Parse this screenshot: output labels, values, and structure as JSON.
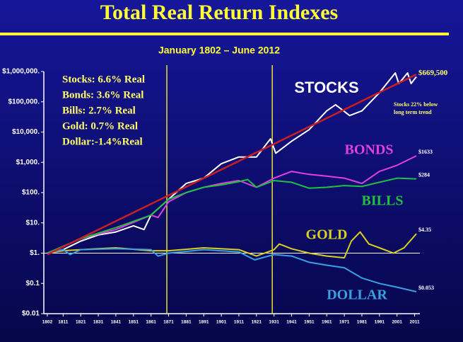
{
  "chart_data": {
    "type": "line",
    "title": "Total Real Return Indexes",
    "subtitle": "January 1802 – June 2012",
    "log_scale": true,
    "xlim": [
      1800,
      2014
    ],
    "xticks": [
      1802,
      1811,
      1821,
      1831,
      1841,
      1851,
      1861,
      1871,
      1881,
      1891,
      1901,
      1911,
      1921,
      1931,
      1941,
      1951,
      1961,
      1971,
      1981,
      1991,
      2001,
      2011
    ],
    "ylim": [
      0.01,
      1000000
    ],
    "yticks": [
      {
        "value": 1000000,
        "label": "$1,000,000."
      },
      {
        "value": 100000,
        "label": "$100,000."
      },
      {
        "value": 10000,
        "label": "$10,000."
      },
      {
        "value": 1000,
        "label": "$1,000."
      },
      {
        "value": 100,
        "label": "$100."
      },
      {
        "value": 10,
        "label": "$10."
      },
      {
        "value": 1,
        "label": "$1."
      },
      {
        "value": 0.1,
        "label": "$0.1"
      },
      {
        "value": 0.01,
        "label": "$0.01"
      }
    ],
    "vertical_lines": [
      1870,
      1930
    ],
    "vertical_line_color": "#e8e030",
    "annotations": [
      "Stocks: 6.6% Real",
      "Bonds: 3.6% Real",
      "Bills:   2.7% Real",
      "Gold:  0.7% Real",
      "Dollar:-1.4%Real"
    ],
    "note": "Stocks 22% below long term trend",
    "trend": {
      "color": "#c82020",
      "x": [
        1802,
        2012
      ],
      "values": [
        0.9,
        800000
      ]
    },
    "series": [
      {
        "name": "STOCKS",
        "color": "#ffffff",
        "x": [
          1802,
          1811,
          1821,
          1831,
          1841,
          1851,
          1857,
          1861,
          1871,
          1881,
          1891,
          1901,
          1911,
          1921,
          1929,
          1932,
          1941,
          1951,
          1961,
          1966,
          1974,
          1981,
          1991,
          2000,
          2002,
          2007,
          2009,
          2012
        ],
        "values": [
          1,
          1.3,
          2.5,
          4,
          5,
          8,
          6,
          18,
          60,
          200,
          300,
          900,
          1500,
          1500,
          6000,
          2000,
          5000,
          12000,
          50000,
          80000,
          35000,
          50000,
          200000,
          900000,
          400000,
          900000,
          400000,
          669500
        ],
        "value_labels": [
          null,
          null,
          null,
          null,
          null,
          null,
          null,
          null,
          null,
          null,
          null,
          null,
          null,
          null,
          null,
          null,
          null,
          null,
          null,
          null,
          null,
          null,
          null,
          null,
          null,
          null,
          null,
          "$669,500"
        ]
      },
      {
        "name": "BONDS",
        "color": "#e040e0",
        "x": [
          1802,
          1821,
          1841,
          1861,
          1865,
          1871,
          1881,
          1891,
          1901,
          1911,
          1921,
          1931,
          1941,
          1951,
          1961,
          1971,
          1981,
          1991,
          2001,
          2012
        ],
        "values": [
          1,
          3,
          6,
          18,
          15,
          50,
          100,
          150,
          200,
          250,
          150,
          300,
          500,
          400,
          350,
          300,
          200,
          500,
          800,
          1633
        ],
        "value_labels": [
          null,
          null,
          null,
          null,
          null,
          null,
          null,
          null,
          null,
          null,
          null,
          null,
          null,
          null,
          null,
          null,
          null,
          null,
          null,
          "$1633"
        ]
      },
      {
        "name": "BILLS",
        "color": "#20c040",
        "x": [
          1802,
          1821,
          1841,
          1861,
          1871,
          1881,
          1891,
          1901,
          1911,
          1916,
          1921,
          1931,
          1941,
          1951,
          1961,
          1971,
          1981,
          1991,
          2001,
          2012
        ],
        "values": [
          1,
          3,
          7,
          18,
          60,
          100,
          150,
          180,
          230,
          270,
          150,
          250,
          220,
          140,
          150,
          170,
          160,
          220,
          300,
          284
        ],
        "value_labels": [
          null,
          null,
          null,
          null,
          null,
          null,
          null,
          null,
          null,
          null,
          null,
          null,
          null,
          null,
          null,
          null,
          null,
          null,
          null,
          "$284"
        ]
      },
      {
        "name": "GOLD",
        "color": "#d8d020",
        "x": [
          1802,
          1811,
          1821,
          1841,
          1861,
          1871,
          1891,
          1911,
          1921,
          1931,
          1934,
          1941,
          1951,
          1961,
          1971,
          1975,
          1980,
          1985,
          1991,
          1999,
          2005,
          2012
        ],
        "values": [
          1,
          1.2,
          1.3,
          1.5,
          1.2,
          1.2,
          1.5,
          1.3,
          0.8,
          1.3,
          2,
          1.4,
          1.0,
          0.8,
          0.7,
          2.5,
          5,
          2,
          1.5,
          1.0,
          1.5,
          4.35
        ],
        "value_labels": [
          null,
          null,
          null,
          null,
          null,
          null,
          null,
          null,
          null,
          null,
          null,
          null,
          null,
          null,
          null,
          null,
          null,
          null,
          null,
          null,
          null,
          "$4.35"
        ]
      },
      {
        "name": "DOLLAR",
        "color": "#3aa0e0",
        "x": [
          1802,
          1811,
          1815,
          1821,
          1841,
          1861,
          1865,
          1871,
          1891,
          1911,
          1920,
          1931,
          1941,
          1951,
          1961,
          1971,
          1981,
          1991,
          2001,
          2012
        ],
        "values": [
          1,
          1.3,
          0.9,
          1.3,
          1.4,
          1.3,
          0.8,
          1.0,
          1.3,
          1.1,
          0.6,
          0.9,
          0.8,
          0.5,
          0.4,
          0.33,
          0.15,
          0.1,
          0.075,
          0.053
        ],
        "value_labels": [
          null,
          null,
          null,
          null,
          null,
          null,
          null,
          null,
          null,
          null,
          null,
          null,
          null,
          null,
          null,
          null,
          null,
          null,
          null,
          "$0.053"
        ]
      }
    ]
  }
}
